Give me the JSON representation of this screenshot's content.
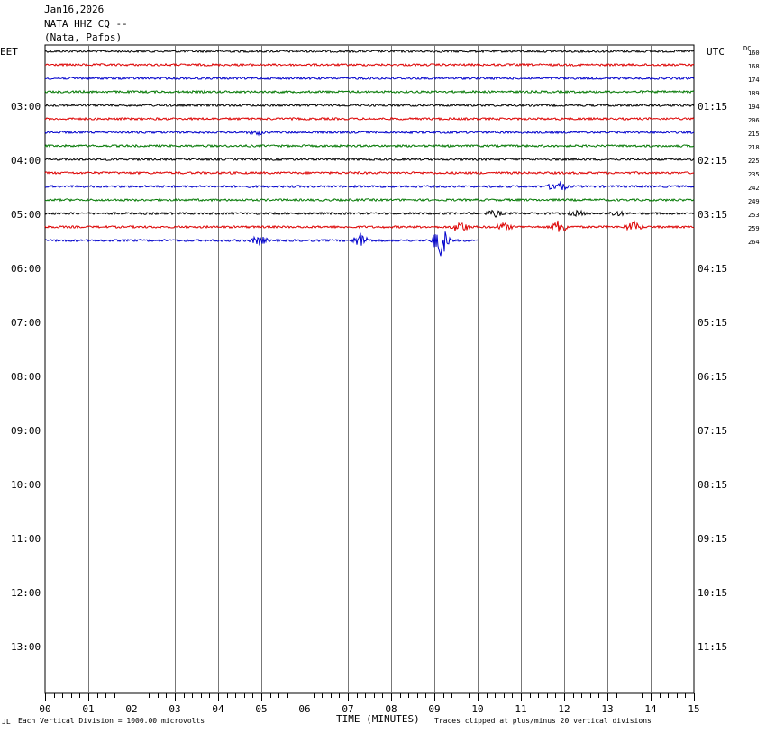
{
  "header": {
    "date": "Jan16,2026",
    "station": "NATA HHZ CQ --",
    "location": "(Nata, Pafos)"
  },
  "axes": {
    "left_label": "EET",
    "right_label": "UTC",
    "dc_label": "DC",
    "x_title": "TIME (MINUTES)"
  },
  "footer": {
    "scale_note": "Each Vertical Division = 1000.00 microvolts",
    "clip_note": "Traces clipped at plus/minus 20 vertical divisions",
    "corner_mark": "JL"
  },
  "chart_data": {
    "type": "line",
    "title": "",
    "xlabel": "TIME (MINUTES)",
    "x_ticks": [
      "00",
      "01",
      "02",
      "03",
      "04",
      "05",
      "06",
      "07",
      "08",
      "09",
      "10",
      "11",
      "12",
      "13",
      "14",
      "15"
    ],
    "xlim": [
      0,
      15
    ],
    "y_ticks_left": [
      "03:00",
      "04:00",
      "05:00",
      "06:00",
      "07:00",
      "08:00",
      "09:00",
      "10:00",
      "11:00",
      "12:00",
      "13:00"
    ],
    "y_ticks_right": [
      "01:15",
      "02:15",
      "03:15",
      "04:15",
      "05:15",
      "06:15",
      "07:15",
      "08:15",
      "09:15",
      "10:15",
      "11:15"
    ],
    "trace_colors": [
      "#000000",
      "#dd0000",
      "#0000cc",
      "#007700"
    ],
    "trace_dc_values": [
      "160",
      "168",
      "174",
      "189",
      "194",
      "206",
      "215",
      "218",
      "225",
      "235",
      "242",
      "249",
      "253",
      "259",
      "264"
    ],
    "trace_end_minutes": [
      15,
      15,
      15,
      15,
      15,
      15,
      15,
      15,
      15,
      15,
      15,
      15,
      15,
      15,
      10
    ],
    "events": [
      {
        "trace": 6,
        "minute": 4.9,
        "amplitude": 0.3
      },
      {
        "trace": 10,
        "minute": 11.85,
        "amplitude": 0.9
      },
      {
        "trace": 12,
        "minute": 10.4,
        "amplitude": 0.4
      },
      {
        "trace": 12,
        "minute": 12.3,
        "amplitude": 0.3
      },
      {
        "trace": 12,
        "minute": 13.2,
        "amplitude": 0.3
      },
      {
        "trace": 13,
        "minute": 9.6,
        "amplitude": 0.8
      },
      {
        "trace": 13,
        "minute": 10.6,
        "amplitude": 0.5
      },
      {
        "trace": 13,
        "minute": 11.9,
        "amplitude": 1.0
      },
      {
        "trace": 13,
        "minute": 13.6,
        "amplitude": 0.7
      },
      {
        "trace": 14,
        "minute": 4.95,
        "amplitude": 0.6
      },
      {
        "trace": 14,
        "minute": 7.3,
        "amplitude": 1.0
      },
      {
        "trace": 14,
        "minute": 9.15,
        "amplitude": 2.2
      }
    ]
  }
}
